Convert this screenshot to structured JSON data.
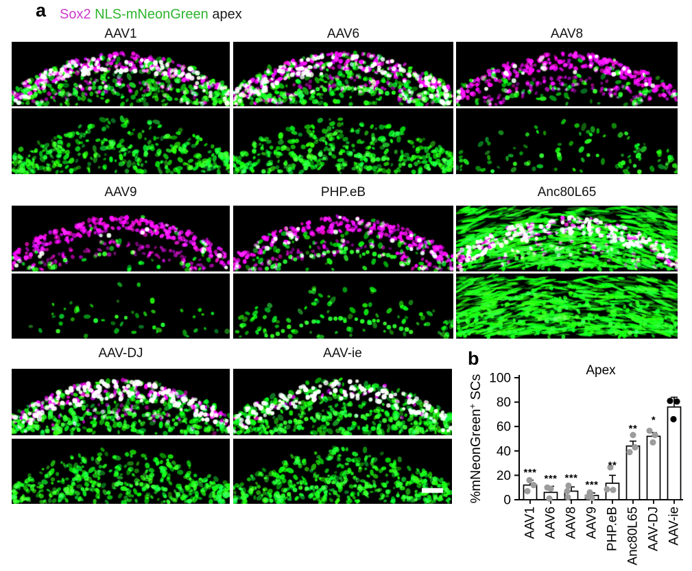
{
  "figure": {
    "panel_a_label": "a",
    "panel_b_label": "b",
    "legend": {
      "sox2": "Sox2",
      "reporter": "NLS-mNeonGreen",
      "region": "apex",
      "sox2_color": "#cb3ccb",
      "reporter_color": "#2eb42e",
      "region_color": "#1a1a1a"
    }
  },
  "image_channels": [
    "Sox2 + NLS-mNeonGreen merge",
    "NLS-mNeonGreen only"
  ],
  "scale_bar": {
    "panel": "AAV-ie",
    "channel": "NLS-mNeonGreen only"
  },
  "panels": [
    {
      "label": "AAV1",
      "appearance": {
        "green": 0.75,
        "magenta": 0.8,
        "coloc": 0.45,
        "fibers": false,
        "row": 0.25,
        "lower": 0.7
      }
    },
    {
      "label": "AAV6",
      "appearance": {
        "green": 0.8,
        "magenta": 0.85,
        "coloc": 0.5,
        "fibers": false,
        "row": 0.75,
        "lower": 0.8
      }
    },
    {
      "label": "AAV8",
      "appearance": {
        "green": 0.2,
        "magenta": 0.95,
        "coloc": 0.1,
        "fibers": false,
        "row": 0.3,
        "lower": 0.8
      }
    },
    {
      "label": "AAV9",
      "appearance": {
        "green": 0.1,
        "magenta": 0.9,
        "coloc": 0.06,
        "fibers": false,
        "row": 0.12,
        "lower": 0.85
      }
    },
    {
      "label": "PHP.eB",
      "appearance": {
        "green": 0.22,
        "magenta": 0.9,
        "coloc": 0.1,
        "fibers": false,
        "row": 0.9,
        "lower": 0.8
      }
    },
    {
      "label": "Anc80L65",
      "appearance": {
        "green": 0.95,
        "magenta": 0.75,
        "coloc": 0.4,
        "fibers": true,
        "row": 0.4,
        "lower": 0.5
      }
    },
    {
      "label": "AAV-DJ",
      "appearance": {
        "green": 0.85,
        "magenta": 0.6,
        "coloc": 0.8,
        "fibers": false,
        "row": 0.6,
        "lower": 0.5
      }
    },
    {
      "label": "AAV-ie",
      "appearance": {
        "green": 0.9,
        "magenta": 0.12,
        "coloc": 0.9,
        "fibers": false,
        "row": 0.95,
        "lower": 0.1
      }
    }
  ],
  "chart_data": {
    "type": "bar",
    "title": "Apex",
    "xlabel": "",
    "ylabel": "%mNeonGreen+ SCs",
    "ylim": [
      0,
      100
    ],
    "yticks": [
      0,
      20,
      40,
      60,
      80,
      100
    ],
    "grid": false,
    "legend_position": "none",
    "categories": [
      "AAV1",
      "AAV6",
      "AAV8",
      "AAV9",
      "PHP.eB",
      "Anc80L65",
      "AAV-DJ",
      "AAV-ie"
    ],
    "values": [
      12,
      6,
      7,
      3.5,
      13.5,
      44,
      52,
      76
    ],
    "errors": [
      4,
      5,
      3.5,
      2,
      6.5,
      4,
      3,
      8
    ],
    "points": [
      [
        [
          -1,
          16
        ],
        [
          5,
          12
        ],
        [
          -4,
          7
        ]
      ],
      [
        [
          -5,
          10
        ],
        [
          0,
          9
        ],
        [
          -2,
          1
        ]
      ],
      [
        [
          -4,
          11.5
        ],
        [
          -6,
          7
        ],
        [
          -5,
          2
        ]
      ],
      [
        [
          -3,
          6
        ],
        [
          -6,
          2.5
        ],
        [
          0,
          1.5
        ]
      ],
      [
        [
          -3,
          26.5
        ],
        [
          -8,
          8.5
        ],
        [
          1,
          8
        ]
      ],
      [
        [
          0,
          53
        ],
        [
          3,
          43
        ],
        [
          -5,
          39
        ]
      ],
      [
        [
          -6,
          56.5
        ],
        [
          2,
          53
        ],
        [
          -1,
          47
        ]
      ],
      [
        [
          -6,
          81
        ],
        [
          4,
          80.5
        ],
        [
          -1,
          66
        ]
      ]
    ],
    "significance": [
      "***",
      "***",
      "***",
      "***",
      "**",
      "**",
      "*",
      ""
    ],
    "significance_y": [
      23,
      18,
      18.5,
      13,
      29,
      59,
      66,
      null
    ],
    "bar_fill": "#ffffff",
    "bar_stroke": "#000000",
    "point_color": "#9c9c9c",
    "last_point_color": "#000000",
    "axis_color": "#000000"
  }
}
